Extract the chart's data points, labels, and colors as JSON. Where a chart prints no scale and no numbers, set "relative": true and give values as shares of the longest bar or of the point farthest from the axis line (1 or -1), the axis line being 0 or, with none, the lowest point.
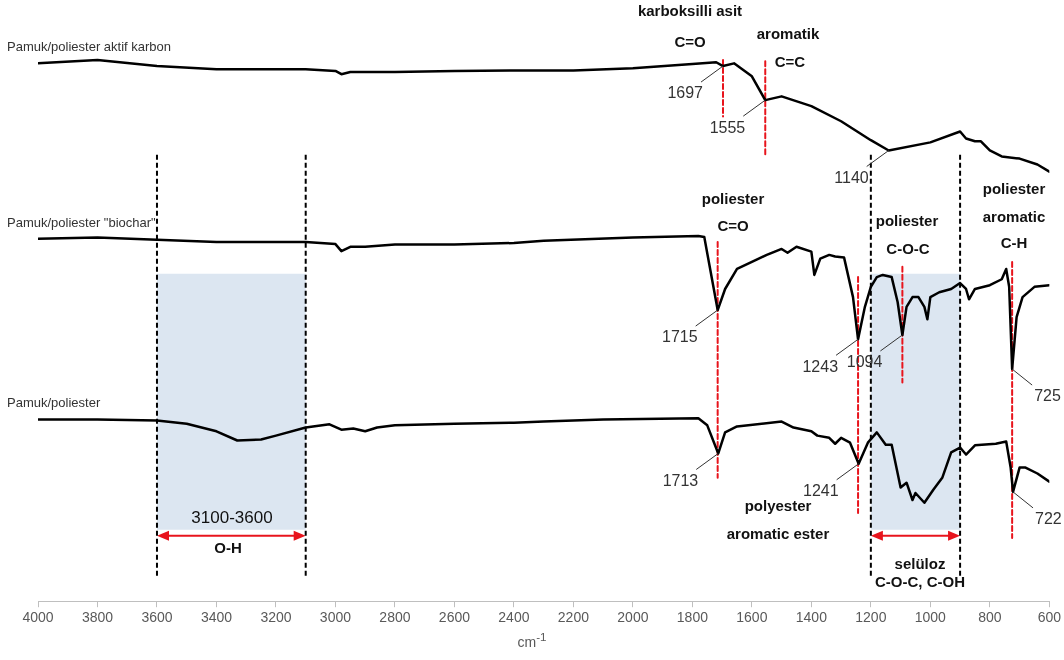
{
  "chart_data": {
    "type": "line",
    "xlabel": "cm$^{-1}$",
    "xlim": [
      4000,
      600
    ],
    "xticks": [
      4000,
      3800,
      3600,
      3400,
      3200,
      3000,
      2800,
      2600,
      2400,
      2200,
      2000,
      1800,
      1600,
      1400,
      1200,
      1000,
      800,
      600
    ],
    "relative": true,
    "legend": false,
    "marker": "none",
    "line_style": "solid",
    "series": [
      {
        "name": "Pamuk/poliester aktif karbon",
        "color": "#000000",
        "x": [
          4000,
          3800,
          3600,
          3400,
          3100,
          3000,
          2980,
          2950,
          2800,
          2600,
          2400,
          2200,
          2000,
          1800,
          1720,
          1697,
          1660,
          1600,
          1555,
          1500,
          1400,
          1300,
          1200,
          1140,
          1000,
          900,
          880,
          850,
          830,
          800,
          760,
          700,
          640,
          600
        ],
        "values": [
          0.994,
          1.0,
          0.989,
          0.983,
          0.983,
          0.98,
          0.974,
          0.978,
          0.978,
          0.98,
          0.981,
          0.981,
          0.985,
          0.993,
          0.996,
          0.989,
          0.994,
          0.97,
          0.926,
          0.933,
          0.915,
          0.887,
          0.852,
          0.833,
          0.848,
          0.868,
          0.855,
          0.85,
          0.85,
          0.833,
          0.822,
          0.818,
          0.807,
          0.794
        ]
      },
      {
        "name": "Pamuk/poliester \"biochar\"",
        "color": "#000000",
        "x": [
          4000,
          3800,
          3600,
          3400,
          3100,
          3000,
          2980,
          2950,
          2900,
          2800,
          2600,
          2400,
          2300,
          2000,
          1780,
          1760,
          1715,
          1690,
          1650,
          1600,
          1550,
          1500,
          1480,
          1450,
          1400,
          1390,
          1370,
          1340,
          1320,
          1290,
          1260,
          1243,
          1220,
          1200,
          1180,
          1160,
          1130,
          1110,
          1094,
          1080,
          1060,
          1040,
          1020,
          1010,
          1000,
          970,
          930,
          900,
          880,
          870,
          850,
          800,
          760,
          745,
          735,
          725,
          710,
          690,
          650,
          600
        ],
        "values": [
          0.67,
          0.672,
          0.668,
          0.664,
          0.664,
          0.66,
          0.647,
          0.655,
          0.655,
          0.659,
          0.659,
          0.662,
          0.666,
          0.672,
          0.675,
          0.673,
          0.538,
          0.577,
          0.614,
          0.627,
          0.64,
          0.651,
          0.644,
          0.655,
          0.646,
          0.603,
          0.633,
          0.64,
          0.637,
          0.635,
          0.562,
          0.484,
          0.544,
          0.581,
          0.599,
          0.603,
          0.599,
          0.553,
          0.492,
          0.544,
          0.562,
          0.562,
          0.544,
          0.521,
          0.562,
          0.571,
          0.577,
          0.588,
          0.577,
          0.558,
          0.577,
          0.584,
          0.595,
          0.614,
          0.581,
          0.429,
          0.525,
          0.562,
          0.581,
          0.584
        ]
      },
      {
        "name": "Pamuk/poliester",
        "color": "#000000",
        "x": [
          4000,
          3800,
          3600,
          3500,
          3400,
          3330,
          3250,
          3200,
          3100,
          3020,
          2980,
          2940,
          2900,
          2860,
          2800,
          2600,
          2400,
          2300,
          2100,
          1780,
          1750,
          1713,
          1690,
          1650,
          1500,
          1460,
          1400,
          1380,
          1340,
          1320,
          1300,
          1270,
          1241,
          1210,
          1180,
          1150,
          1130,
          1100,
          1080,
          1060,
          1050,
          1020,
          990,
          960,
          930,
          900,
          880,
          850,
          780,
          745,
          730,
          722,
          700,
          680,
          640,
          600
        ],
        "values": [
          0.336,
          0.336,
          0.334,
          0.328,
          0.314,
          0.297,
          0.299,
          0.306,
          0.321,
          0.327,
          0.317,
          0.319,
          0.314,
          0.321,
          0.325,
          0.328,
          0.33,
          0.332,
          0.336,
          0.338,
          0.325,
          0.273,
          0.312,
          0.323,
          0.332,
          0.321,
          0.314,
          0.306,
          0.302,
          0.291,
          0.302,
          0.293,
          0.254,
          0.293,
          0.312,
          0.289,
          0.289,
          0.21,
          0.219,
          0.187,
          0.2,
          0.182,
          0.206,
          0.228,
          0.275,
          0.284,
          0.271,
          0.288,
          0.291,
          0.295,
          0.247,
          0.202,
          0.247,
          0.247,
          0.236,
          0.221
        ]
      },
      {
        "type": "line",
        "color": "#e8141c",
        "line_style": "dashed",
        "x": [
          1697,
          1697
        ],
        "values": [
          1.0,
          0.896
        ]
      },
      {
        "type": "line",
        "color": "#e8141c",
        "line_style": "dashed",
        "x": [
          1555,
          1555
        ],
        "values": [
          0.998,
          0.822
        ]
      },
      {
        "type": "line",
        "color": "#e8141c",
        "line_style": "dashed",
        "x": [
          1715,
          1715
        ],
        "values": [
          0.664,
          0.228
        ]
      },
      {
        "type": "line",
        "color": "#e8141c",
        "line_style": "dashed",
        "x": [
          1243,
          1243
        ],
        "values": [
          0.599,
          0.163
        ]
      },
      {
        "type": "line",
        "color": "#e8141c",
        "line_style": "dashed",
        "x": [
          1094,
          1094
        ],
        "values": [
          0.618,
          0.404
        ]
      },
      {
        "type": "line",
        "color": "#e8141c",
        "line_style": "dashed",
        "x": [
          725,
          725
        ],
        "values": [
          0.627,
          0.117
        ]
      }
    ],
    "bands": [
      {
        "axis": "x",
        "from": 3600,
        "to": 3100,
        "color": "#dce6f1"
      },
      {
        "axis": "x",
        "from": 1200,
        "to": 900,
        "color": "#dce6f1"
      }
    ],
    "ref_lines": [
      {
        "axis": "x",
        "value": 3600,
        "color": "#000000",
        "line_style": "dashed"
      },
      {
        "axis": "x",
        "value": 3100,
        "color": "#000000",
        "line_style": "dashed"
      },
      {
        "axis": "x",
        "value": 1200,
        "color": "#000000",
        "line_style": "dashed"
      },
      {
        "axis": "x",
        "value": 900,
        "color": "#000000",
        "line_style": "dashed"
      }
    ],
    "annotations": [
      "karboksilli asit",
      "C=O",
      "aromatik",
      "C=C",
      "poliester",
      "C=O",
      "poliester",
      "C-O-C",
      "poliester",
      "aromatic",
      "C-H",
      "polyester",
      "aromatic ester",
      "3100-3600",
      "O-H",
      "selüloz",
      "C-O-C, C-OH",
      {
        "text": "1697",
        "x": 1697,
        "y": 0.989
      },
      {
        "text": "1555",
        "x": 1555,
        "y": 0.926
      },
      {
        "text": "1140",
        "x": 1140,
        "y": 0.833
      },
      {
        "text": "1715",
        "x": 1715,
        "y": 0.538
      },
      {
        "text": "1243",
        "x": 1243,
        "y": 0.484
      },
      {
        "text": "1094",
        "x": 1094,
        "y": 0.492
      },
      {
        "text": "725",
        "x": 725,
        "y": 0.429
      },
      {
        "text": "1713",
        "x": 1713,
        "y": 0.273
      },
      {
        "text": "1241",
        "x": 1241,
        "y": 0.254
      },
      {
        "text": "722",
        "x": 722,
        "y": 0.202
      }
    ]
  }
}
